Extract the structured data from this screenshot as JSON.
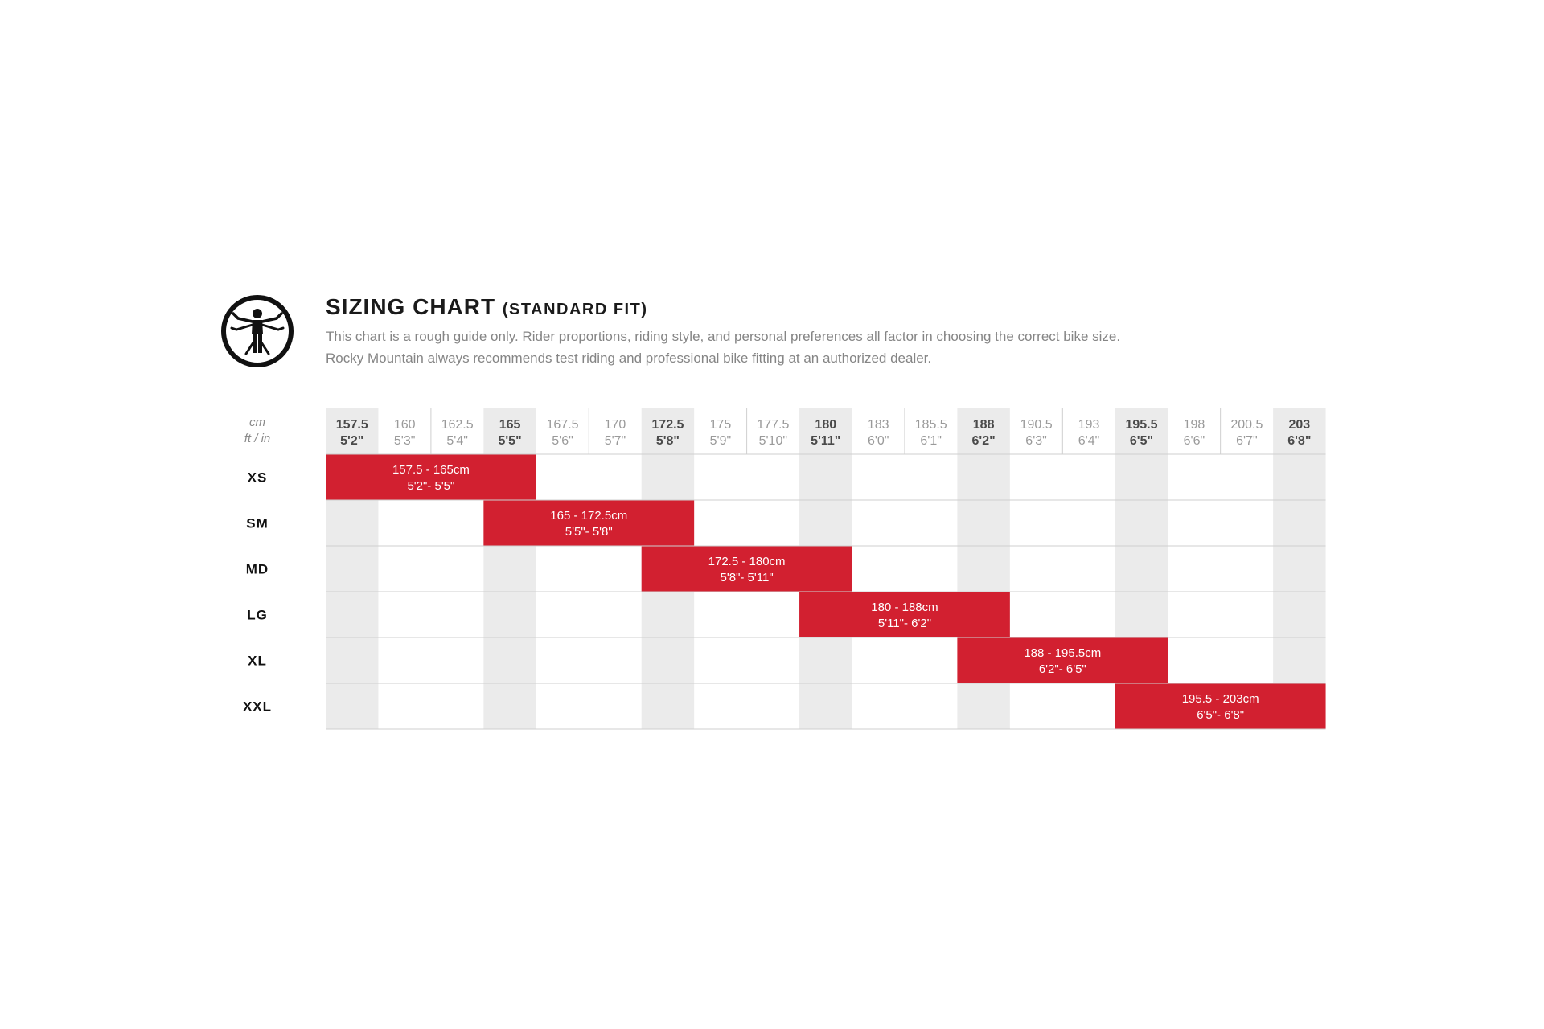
{
  "header": {
    "title": "SIZING CHART",
    "subtitle": "(STANDARD FIT)",
    "description_line1": "This chart is a rough guide only. Rider proportions, riding style, and personal preferences all factor in choosing the correct bike size.",
    "description_line2": "Rocky Mountain always recommends test riding and professional bike fitting at an authorized dealer.",
    "icon": "vitruvian-man-icon"
  },
  "chart_data": {
    "type": "table",
    "unit_labels": {
      "cm": "cm",
      "ftin": "ft / in"
    },
    "columns": [
      {
        "cm": "157.5",
        "ftin": "5'2\"",
        "highlight": true
      },
      {
        "cm": "160",
        "ftin": "5'3\"",
        "highlight": false
      },
      {
        "cm": "162.5",
        "ftin": "5'4\"",
        "highlight": false
      },
      {
        "cm": "165",
        "ftin": "5'5\"",
        "highlight": true
      },
      {
        "cm": "167.5",
        "ftin": "5'6\"",
        "highlight": false
      },
      {
        "cm": "170",
        "ftin": "5'7\"",
        "highlight": false
      },
      {
        "cm": "172.5",
        "ftin": "5'8\"",
        "highlight": true
      },
      {
        "cm": "175",
        "ftin": "5'9\"",
        "highlight": false
      },
      {
        "cm": "177.5",
        "ftin": "5'10\"",
        "highlight": false
      },
      {
        "cm": "180",
        "ftin": "5'11\"",
        "highlight": true
      },
      {
        "cm": "183",
        "ftin": "6'0\"",
        "highlight": false
      },
      {
        "cm": "185.5",
        "ftin": "6'1\"",
        "highlight": false
      },
      {
        "cm": "188",
        "ftin": "6'2\"",
        "highlight": true
      },
      {
        "cm": "190.5",
        "ftin": "6'3\"",
        "highlight": false
      },
      {
        "cm": "193",
        "ftin": "6'4\"",
        "highlight": false
      },
      {
        "cm": "195.5",
        "ftin": "6'5\"",
        "highlight": true
      },
      {
        "cm": "198",
        "ftin": "6'6\"",
        "highlight": false
      },
      {
        "cm": "200.5",
        "ftin": "6'7\"",
        "highlight": false
      },
      {
        "cm": "203",
        "ftin": "6'8\"",
        "highlight": true
      }
    ],
    "sizes": [
      {
        "size": "XS",
        "start": 0,
        "end": 3,
        "label_cm": "157.5 - 165cm",
        "label_ftin": "5'2\"- 5'5\""
      },
      {
        "size": "SM",
        "start": 3,
        "end": 6,
        "label_cm": "165 - 172.5cm",
        "label_ftin": "5'5\"- 5'8\""
      },
      {
        "size": "MD",
        "start": 6,
        "end": 9,
        "label_cm": "172.5 - 180cm",
        "label_ftin": "5'8\"- 5'11\""
      },
      {
        "size": "LG",
        "start": 9,
        "end": 12,
        "label_cm": "180 - 188cm",
        "label_ftin": "5'11\"- 6'2\""
      },
      {
        "size": "XL",
        "start": 12,
        "end": 15,
        "label_cm": "188 - 195.5cm",
        "label_ftin": "6'2\"- 6'5\""
      },
      {
        "size": "XXL",
        "start": 15,
        "end": 18,
        "label_cm": "195.5 - 203cm",
        "label_ftin": "6'5\"- 6'8\""
      }
    ],
    "colors": {
      "bar": "#d22030",
      "highlight_column": "#ebebeb",
      "grid_line": "#cfcfcf",
      "header_text_dim": "#9a9a9a",
      "header_text_bold": "#4a4a4a",
      "size_label": "#111111",
      "bar_text": "#ffffff"
    }
  }
}
